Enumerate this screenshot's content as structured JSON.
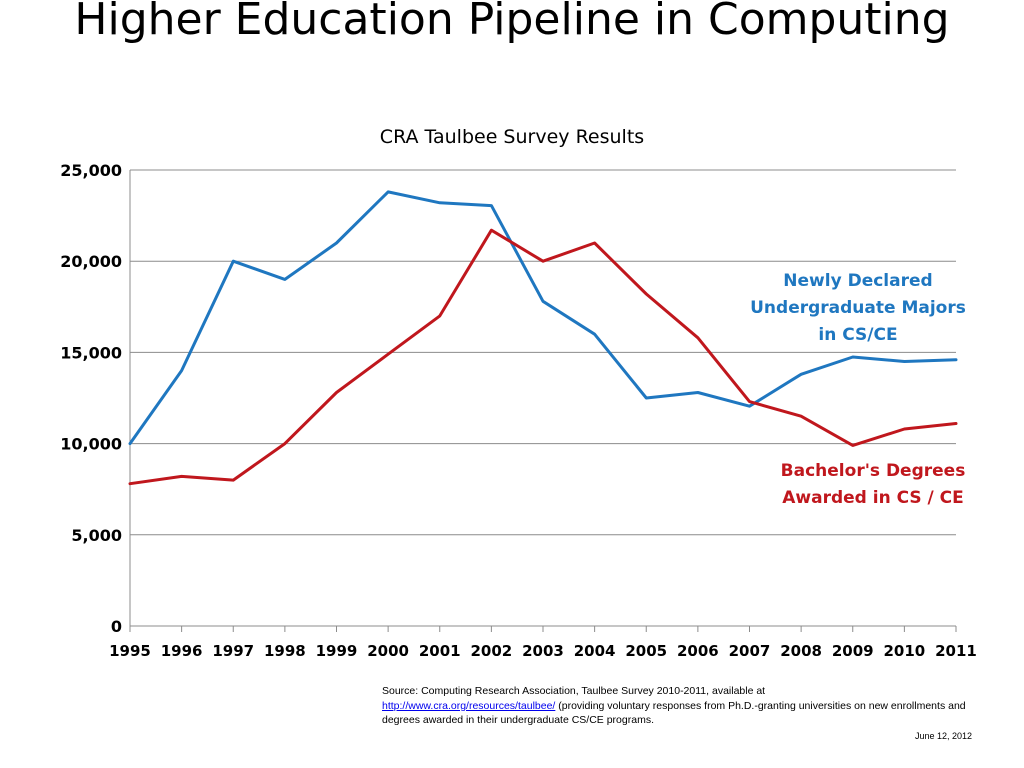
{
  "title": "Higher Education Pipeline in Computing",
  "subtitle": "CRA Taulbee Survey Results",
  "chart_data": {
    "type": "line",
    "x": [
      "1995",
      "1996",
      "1997",
      "1998",
      "1999",
      "2000",
      "2001",
      "2002",
      "2003",
      "2004",
      "2005",
      "2006",
      "2007",
      "2008",
      "2009",
      "2010",
      "2011"
    ],
    "ylim": [
      0,
      25000
    ],
    "yticks": [
      0,
      5000,
      10000,
      15000,
      20000,
      25000
    ],
    "ytick_labels": [
      "0",
      "5,000",
      "10,000",
      "15,000",
      "20,000",
      "25,000"
    ],
    "grid": "horizontal",
    "series": [
      {
        "name": "Newly Declared Undergraduate  Majors in CS/CE",
        "label_lines": [
          "Newly Declared",
          "Undergraduate  Majors",
          "in CS/CE"
        ],
        "color": "#1f77c0",
        "values": [
          10000,
          14000,
          20000,
          19000,
          21000,
          23800,
          23200,
          23050,
          17800,
          16000,
          12500,
          12800,
          12050,
          13800,
          14750,
          14500,
          14600
        ]
      },
      {
        "name": "Bachelor's Degrees Awarded in CS / CE",
        "label_lines": [
          "Bachelor's Degrees",
          "Awarded in CS / CE"
        ],
        "color": "#c0171d",
        "values": [
          7800,
          8200,
          8000,
          10000,
          12800,
          14900,
          17000,
          21700,
          20000,
          21000,
          18200,
          15800,
          12300,
          11500,
          9900,
          10800,
          11100
        ]
      }
    ]
  },
  "source": {
    "prefix": "Source: Computing Research Association, Taulbee Survey 2010-2011, available at",
    "link": "http://www.cra.org/resources/taulbee/",
    "suffix": " (providing voluntary responses from Ph.D.-granting universities on new enrollments and degrees awarded in their undergraduate CS/CE programs."
  },
  "date": "June 12, 2012"
}
